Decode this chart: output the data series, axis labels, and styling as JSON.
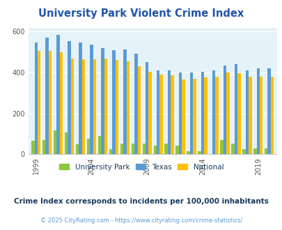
{
  "title": "University Park Violent Crime Index",
  "title_color": "#2255aa",
  "subtitle": "Crime Index corresponds to incidents per 100,000 inhabitants",
  "footer": "© 2025 CityRating.com - https://www.cityrating.com/crime-statistics/",
  "years": [
    1999,
    2000,
    2001,
    2002,
    2003,
    2004,
    2005,
    2006,
    2007,
    2008,
    2009,
    2010,
    2011,
    2012,
    2013,
    2014,
    2015,
    2016,
    2017,
    2018,
    2019,
    2020
  ],
  "university_park": [
    65,
    70,
    115,
    105,
    48,
    75,
    90,
    25,
    52,
    52,
    52,
    42,
    52,
    40,
    15,
    15,
    0,
    68,
    52,
    25,
    28,
    28
  ],
  "texas": [
    548,
    570,
    583,
    555,
    548,
    535,
    520,
    510,
    512,
    492,
    450,
    410,
    410,
    400,
    400,
    405,
    410,
    435,
    440,
    410,
    420,
    420
  ],
  "national": [
    505,
    505,
    500,
    470,
    465,
    465,
    470,
    460,
    455,
    430,
    405,
    390,
    385,
    365,
    370,
    375,
    380,
    400,
    395,
    380,
    378,
    378
  ],
  "bar_colors": {
    "university_park": "#8dc63f",
    "texas": "#5b9bd5",
    "national": "#ffc000"
  },
  "plot_bg": "#e5f3f8",
  "ylim": [
    0,
    620
  ],
  "yticks": [
    0,
    200,
    400,
    600
  ],
  "legend_labels": [
    "University Park",
    "Texas",
    "National"
  ],
  "subtitle_color": "#1a3a5c",
  "footer_color": "#5b9bd5",
  "tick_label_years": [
    1999,
    2004,
    2009,
    2014,
    2019
  ]
}
